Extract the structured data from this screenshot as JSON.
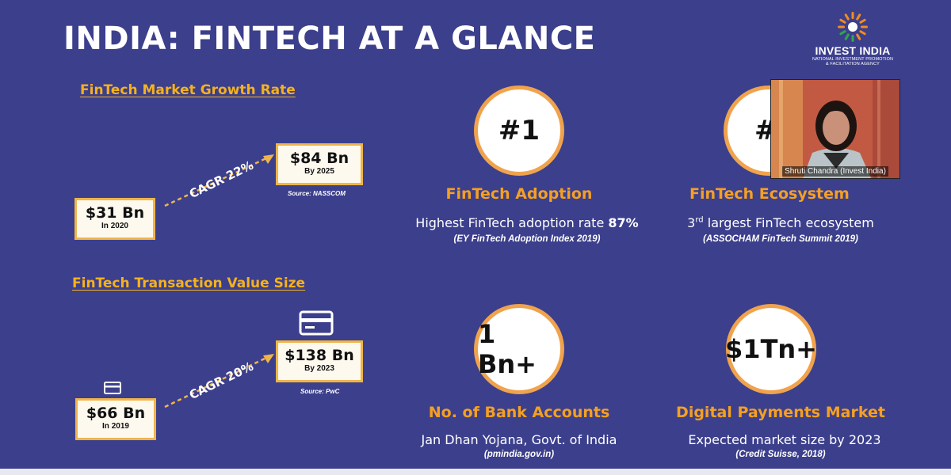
{
  "slide": {
    "title": "INDIA: FINTECH AT A GLANCE",
    "colors": {
      "background": "#3c3f8c",
      "accent": "#f5b21c",
      "circle_border": "#f0a34d"
    }
  },
  "logo": {
    "name": "INVEST INDIA",
    "tagline_1": "NATIONAL INVESTMENT PROMOTION",
    "tagline_2": "& FACILITATION AGENCY",
    "icon": "chakra-logo-icon"
  },
  "market_growth": {
    "heading": "FinTech Market Growth Rate",
    "start_value": "$31 Bn",
    "start_sub": "In 2020",
    "end_value": "$84 Bn",
    "end_sub": "By 2025",
    "cagr": "CAGR 22%",
    "source": "Source: NASSCOM"
  },
  "transaction_value": {
    "heading": "FinTech Transaction Value Size",
    "start_value": "$66 Bn",
    "start_sub": "In 2019",
    "end_value": "$138 Bn",
    "end_sub": "By 2023",
    "cagr": "CAGR 20%",
    "source": "Source: PwC",
    "icon": "credit-card-icon"
  },
  "stats": {
    "adoption": {
      "circle": "#1",
      "title": "FinTech Adoption",
      "desc_text": "Highest FinTech adoption rate ",
      "desc_bold": "87%",
      "source": "(EY FinTech Adoption Index 2019)"
    },
    "ecosystem": {
      "circle": "#3",
      "title": "FinTech Ecosystem",
      "desc_num": "3",
      "desc_sup": "rd",
      "desc_text": " largest FinTech ecosystem",
      "source": "(ASSOCHAM FinTech Summit 2019)"
    },
    "bank_accounts": {
      "circle": "1 Bn+",
      "title": "No. of Bank Accounts",
      "desc_text": "Jan Dhan Yojana, Govt. of India",
      "source": "(pmindia.gov.in)"
    },
    "digital_payments": {
      "circle": "$1Tn+",
      "title": "Digital Payments Market",
      "desc_text": "Expected market size by 2023",
      "source": "(Credit Suisse, 2018)"
    }
  },
  "video_call": {
    "participant": "Shruti Chandra (Invest India)"
  }
}
